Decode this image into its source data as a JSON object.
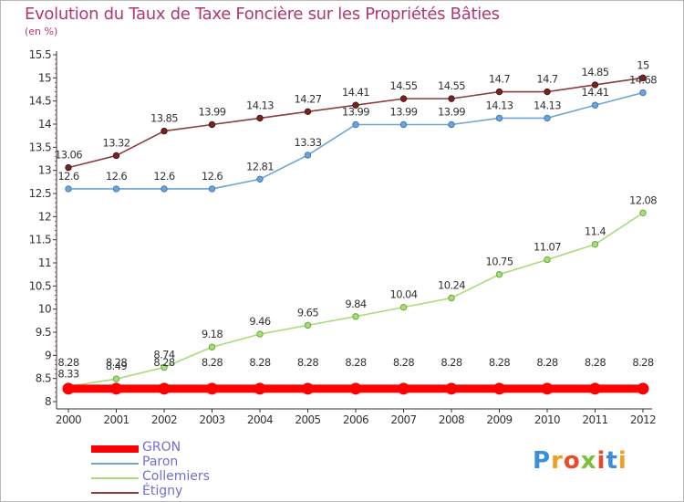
{
  "title": "Evolution du Taux de Taxe Foncière sur les Propriétés Bâties",
  "unit": "(en %)",
  "logo_text": "Proxiti",
  "chart_data": {
    "type": "line",
    "categories": [
      "2000",
      "2001",
      "2002",
      "2003",
      "2004",
      "2005",
      "2006",
      "2007",
      "2008",
      "2009",
      "2010",
      "2011",
      "2012"
    ],
    "ylim": [
      8,
      15.5
    ],
    "yticks": [
      "8",
      "8.5",
      "9",
      "9.5",
      "10",
      "10.5",
      "11",
      "11.5",
      "12",
      "12.5",
      "13",
      "13.5",
      "14",
      "14.5",
      "15",
      "15.5"
    ],
    "grid": false,
    "legend_position": "bottom-left",
    "series": [
      {
        "name": "GRON",
        "color": "#ff0000",
        "values": [
          8.28,
          8.28,
          8.28,
          8.28,
          8.28,
          8.28,
          8.28,
          8.28,
          8.28,
          8.28,
          8.28,
          8.28,
          8.28
        ],
        "labels": [
          "8.28",
          "8.28",
          "8.28",
          "8.28",
          "8.28",
          "8.28",
          "8.28",
          "8.28",
          "8.28",
          "8.28",
          "8.28",
          "8.28",
          "8.28"
        ]
      },
      {
        "name": "Paron",
        "color": "#6fa5d6",
        "values": [
          12.6,
          12.6,
          12.6,
          12.6,
          12.81,
          13.33,
          13.99,
          13.99,
          13.99,
          14.13,
          14.13,
          14.41,
          14.68
        ],
        "labels": [
          "12.6",
          "12.6",
          "12.6",
          "12.6",
          "12.81",
          "13.33",
          "13.99",
          "13.99",
          "13.99",
          "14.13",
          "14.13",
          "14.41",
          "14.68"
        ]
      },
      {
        "name": "Collemiers",
        "color": "#a6dd77",
        "values": [
          8.33,
          8.49,
          8.74,
          9.18,
          9.46,
          9.65,
          9.84,
          10.04,
          10.24,
          10.75,
          11.07,
          11.4,
          12.08
        ],
        "labels": [
          "8.33",
          "8.49",
          "8.74",
          "9.18",
          "9.46",
          "9.65",
          "9.84",
          "10.04",
          "10.24",
          "10.75",
          "11.07",
          "11.4",
          "12.08"
        ]
      },
      {
        "name": "Étigny",
        "color": "#8c3c3c",
        "values": [
          13.06,
          13.32,
          13.85,
          13.99,
          14.13,
          14.27,
          14.41,
          14.55,
          14.55,
          14.7,
          14.7,
          14.85,
          15
        ],
        "labels": [
          "13.06",
          "13.32",
          "13.85",
          "13.99",
          "14.13",
          "14.27",
          "14.41",
          "14.55",
          "14.55",
          "14.7",
          "14.7",
          "14.85",
          "15"
        ]
      }
    ]
  }
}
